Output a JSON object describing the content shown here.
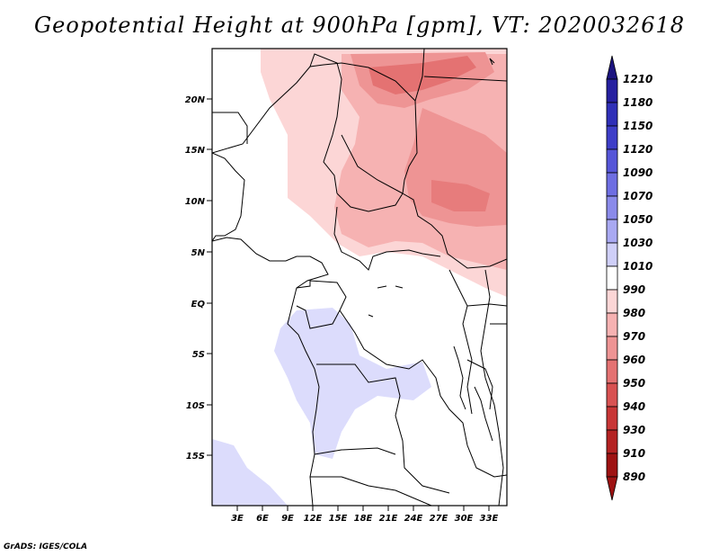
{
  "title": "Geopotential Height at 900hPa [gpm], VT: 2020032618",
  "footer": "GrADS: IGES/COLA",
  "map": {
    "lat_labels": [
      "20N",
      "15N",
      "10N",
      "5N",
      "EQ",
      "5S",
      "10S",
      "15S"
    ],
    "lon_labels": [
      "3E",
      "6E",
      "9E",
      "12E",
      "15E",
      "18E",
      "21E",
      "24E",
      "27E",
      "30E",
      "33E"
    ]
  },
  "colorbar": {
    "levels": [
      "1210",
      "1180",
      "1150",
      "1120",
      "1090",
      "1070",
      "1050",
      "1030",
      "1010",
      "990",
      "980",
      "970",
      "960",
      "950",
      "940",
      "930",
      "910",
      "890"
    ],
    "colors": [
      "#1c1480",
      "#2620a0",
      "#3030b8",
      "#3e3ec8",
      "#5656d8",
      "#6e6ee2",
      "#8a8aea",
      "#a9a9f2",
      "#cfcff8",
      "#ffffff",
      "#fcd6d6",
      "#f6b2b2",
      "#ee9494",
      "#e47272",
      "#d85252",
      "#c83636",
      "#b42222",
      "#9e1212"
    ]
  }
}
